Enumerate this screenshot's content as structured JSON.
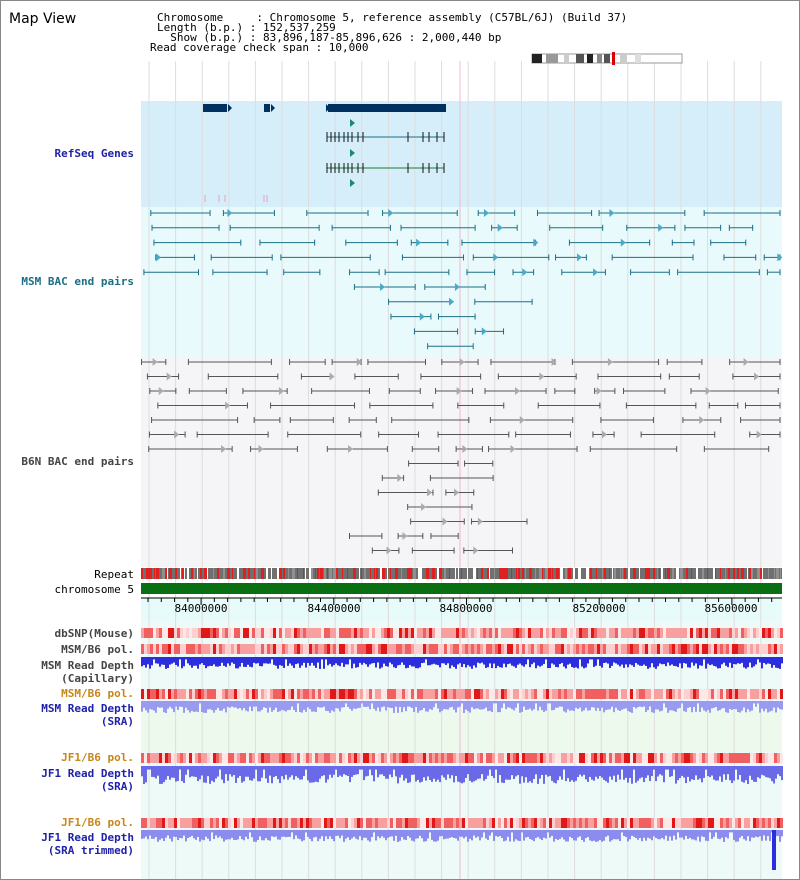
{
  "header": {
    "title": "Map View",
    "chromosome_label": "Chromosome     : Chromosome 5, reference assembly (C57BL/6J) (Build 37)",
    "length_label": "Length (b.p.) : 152,537,259",
    "show_label": "  Show (b.p.) : 83,896,187-85,896,626 : 2,000,440 bp",
    "coverage_label": "Read coverage check span : 10,000"
  },
  "tracks": {
    "refseq": "RefSeq Genes",
    "msm_bac": "MSM BAC end pairs",
    "b6n_bac": "B6N BAC end pairs",
    "repeat": "Repeat",
    "chromosome": "chromosome 5",
    "dbsnp": "dbSNP(Mouse)",
    "msm_pol1": "MSM/B6 pol.",
    "msm_depth_cap1": "MSM Read Depth",
    "msm_depth_cap2": "(Capillary)",
    "msm_pol2": "MSM/B6 pol.",
    "msm_depth_sra1": "MSM Read Depth",
    "msm_depth_sra2": "(SRA)",
    "jf1_pol1": "JF1/B6 pol.",
    "jf1_depth1": "JF1 Read Depth",
    "jf1_depth2": "(SRA)",
    "jf1_pol2": "JF1/B6 pol.",
    "jf1_trim1": "JF1 Read Depth",
    "jf1_trim2": "(SRA trimmed)"
  },
  "axis_ticks": [
    "84000000",
    "84400000",
    "84800000",
    "85200000",
    "85600000"
  ],
  "colors": {
    "refseq_bg": "#d6eefa",
    "bac_bg": "#e8fafc",
    "navy": "#003060",
    "teal": "#1a6f86",
    "chrom_green": "#0a6f12",
    "depth_blue": "#2d2de0",
    "depth_light": "#8c8cf0"
  }
}
